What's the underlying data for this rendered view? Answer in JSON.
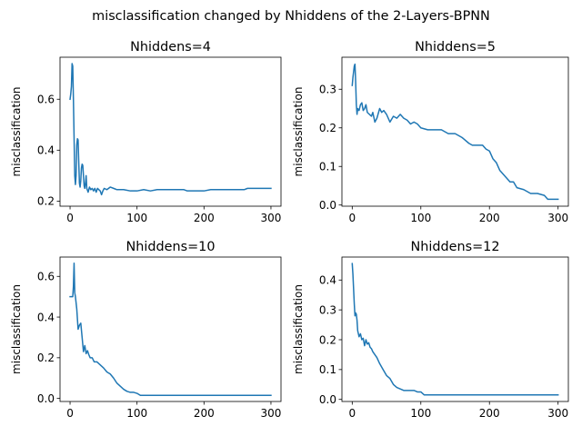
{
  "figure": {
    "suptitle": "misclassification changed by Nhiddens of the 2-Layers-BPNN"
  },
  "colors": {
    "line": "#1f77b4"
  },
  "chart_data": [
    {
      "type": "line",
      "title": "Nhiddens=4",
      "xlabel": "",
      "ylabel": "misclassification",
      "xlim": [
        -15,
        315
      ],
      "ylim": [
        0.18,
        0.765
      ],
      "xticks": [
        0,
        100,
        200,
        300
      ],
      "xtick_labels": [
        "0",
        "100",
        "200",
        "300"
      ],
      "yticks": [
        0.2,
        0.4,
        0.6
      ],
      "ytick_labels": [
        "0.2",
        "0.4",
        "0.6"
      ],
      "grid": false,
      "series": [
        {
          "x": [
            0,
            1,
            2,
            3,
            4,
            5,
            6,
            7,
            8,
            9,
            10,
            11,
            12,
            13,
            14,
            15,
            16,
            17,
            18,
            19,
            20,
            21,
            22,
            23,
            24,
            25,
            27,
            29,
            31,
            33,
            35,
            37,
            39,
            41,
            43,
            45,
            47,
            49,
            51,
            55,
            60,
            65,
            70,
            80,
            90,
            100,
            110,
            120,
            130,
            140,
            150,
            160,
            170,
            175,
            180,
            190,
            200,
            210,
            220,
            230,
            240,
            250,
            260,
            265,
            270,
            280,
            290,
            300
          ],
          "y": [
            0.6,
            0.62,
            0.65,
            0.74,
            0.73,
            0.6,
            0.45,
            0.3,
            0.265,
            0.3,
            0.42,
            0.445,
            0.44,
            0.35,
            0.27,
            0.255,
            0.28,
            0.33,
            0.345,
            0.34,
            0.3,
            0.26,
            0.25,
            0.27,
            0.3,
            0.25,
            0.235,
            0.255,
            0.245,
            0.25,
            0.24,
            0.25,
            0.235,
            0.25,
            0.245,
            0.24,
            0.225,
            0.24,
            0.25,
            0.245,
            0.255,
            0.25,
            0.245,
            0.245,
            0.24,
            0.24,
            0.245,
            0.24,
            0.245,
            0.245,
            0.245,
            0.245,
            0.245,
            0.24,
            0.24,
            0.24,
            0.24,
            0.245,
            0.245,
            0.245,
            0.245,
            0.245,
            0.245,
            0.25,
            0.25,
            0.25,
            0.25,
            0.25
          ]
        }
      ]
    },
    {
      "type": "line",
      "title": "Nhiddens=5",
      "xlabel": "",
      "ylabel": "misclassification",
      "xlim": [
        -15,
        315
      ],
      "ylim": [
        -0.003,
        0.383
      ],
      "xticks": [
        0,
        100,
        200,
        300
      ],
      "xtick_labels": [
        "0",
        "100",
        "200",
        "300"
      ],
      "yticks": [
        0.0,
        0.1,
        0.2,
        0.3
      ],
      "ytick_labels": [
        "0.0",
        "0.1",
        "0.2",
        "0.3"
      ],
      "grid": false,
      "series": [
        {
          "x": [
            0,
            1,
            2,
            3,
            4,
            5,
            6,
            7,
            8,
            10,
            12,
            14,
            16,
            18,
            20,
            22,
            25,
            28,
            30,
            33,
            36,
            40,
            43,
            46,
            50,
            55,
            60,
            65,
            70,
            75,
            80,
            85,
            90,
            95,
            100,
            110,
            120,
            130,
            140,
            150,
            160,
            170,
            175,
            180,
            185,
            190,
            195,
            200,
            205,
            210,
            215,
            220,
            225,
            230,
            235,
            240,
            250,
            260,
            270,
            280,
            285,
            290,
            300
          ],
          "y": [
            0.31,
            0.33,
            0.345,
            0.36,
            0.365,
            0.32,
            0.26,
            0.235,
            0.25,
            0.245,
            0.26,
            0.265,
            0.245,
            0.25,
            0.26,
            0.24,
            0.235,
            0.23,
            0.24,
            0.215,
            0.225,
            0.25,
            0.24,
            0.245,
            0.235,
            0.215,
            0.23,
            0.225,
            0.235,
            0.225,
            0.22,
            0.21,
            0.215,
            0.21,
            0.2,
            0.195,
            0.195,
            0.195,
            0.185,
            0.185,
            0.175,
            0.16,
            0.155,
            0.155,
            0.155,
            0.155,
            0.145,
            0.14,
            0.12,
            0.11,
            0.09,
            0.08,
            0.07,
            0.06,
            0.06,
            0.045,
            0.04,
            0.03,
            0.03,
            0.025,
            0.015,
            0.015,
            0.015
          ]
        }
      ]
    },
    {
      "type": "line",
      "title": "Nhiddens=10",
      "xlabel": "",
      "ylabel": "misclassification",
      "xlim": [
        -15,
        315
      ],
      "ylim": [
        -0.015,
        0.695
      ],
      "xticks": [
        0,
        100,
        200,
        300
      ],
      "xtick_labels": [
        "0",
        "100",
        "200",
        "300"
      ],
      "yticks": [
        0.0,
        0.2,
        0.4,
        0.6
      ],
      "ytick_labels": [
        "0.0",
        "0.2",
        "0.4",
        "0.6"
      ],
      "grid": false,
      "series": [
        {
          "x": [
            0,
            2,
            4,
            5,
            6,
            7,
            8,
            10,
            12,
            14,
            16,
            18,
            20,
            22,
            24,
            26,
            28,
            30,
            33,
            36,
            40,
            45,
            50,
            55,
            60,
            65,
            70,
            75,
            80,
            85,
            90,
            95,
            100,
            105,
            110,
            120,
            150,
            200,
            250,
            300
          ],
          "y": [
            0.5,
            0.5,
            0.5,
            0.55,
            0.665,
            0.52,
            0.5,
            0.44,
            0.34,
            0.36,
            0.37,
            0.3,
            0.23,
            0.26,
            0.22,
            0.235,
            0.215,
            0.2,
            0.2,
            0.18,
            0.18,
            0.165,
            0.15,
            0.13,
            0.12,
            0.1,
            0.075,
            0.06,
            0.045,
            0.035,
            0.03,
            0.03,
            0.025,
            0.015,
            0.015,
            0.015,
            0.015,
            0.015,
            0.015,
            0.015
          ]
        }
      ]
    },
    {
      "type": "line",
      "title": "Nhiddens=12",
      "xlabel": "",
      "ylabel": "misclassification",
      "xlim": [
        -15,
        315
      ],
      "ylim": [
        -0.007,
        0.477
      ],
      "xticks": [
        0,
        100,
        200,
        300
      ],
      "xtick_labels": [
        "0",
        "100",
        "200",
        "300"
      ],
      "yticks": [
        0.0,
        0.1,
        0.2,
        0.3,
        0.4
      ],
      "ytick_labels": [
        "0.0",
        "0.1",
        "0.2",
        "0.3",
        "0.4"
      ],
      "grid": false,
      "series": [
        {
          "x": [
            0,
            1,
            2,
            3,
            4,
            5,
            6,
            7,
            8,
            10,
            12,
            14,
            16,
            18,
            20,
            22,
            24,
            26,
            28,
            30,
            33,
            36,
            40,
            45,
            50,
            55,
            60,
            65,
            70,
            75,
            80,
            85,
            90,
            95,
            100,
            105,
            110,
            120,
            150,
            200,
            250,
            300
          ],
          "y": [
            0.455,
            0.42,
            0.37,
            0.32,
            0.28,
            0.29,
            0.285,
            0.265,
            0.23,
            0.21,
            0.22,
            0.2,
            0.205,
            0.18,
            0.2,
            0.185,
            0.19,
            0.175,
            0.17,
            0.16,
            0.15,
            0.14,
            0.12,
            0.1,
            0.08,
            0.07,
            0.05,
            0.04,
            0.035,
            0.03,
            0.03,
            0.03,
            0.03,
            0.025,
            0.025,
            0.015,
            0.015,
            0.015,
            0.015,
            0.015,
            0.015,
            0.015
          ]
        }
      ]
    }
  ]
}
